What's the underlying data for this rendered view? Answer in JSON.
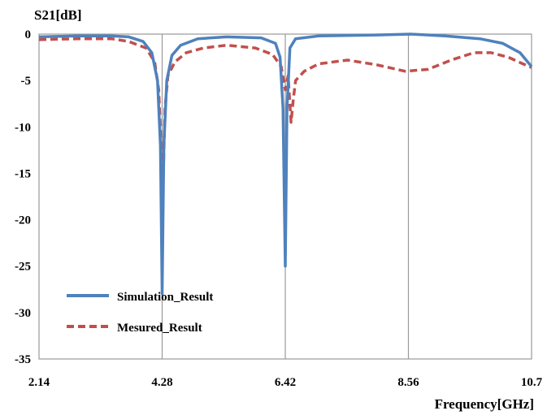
{
  "chart_data": {
    "type": "line",
    "ylabel": "S21[dB]",
    "xlabel": "Frequency[GHz]",
    "xlim": [
      2.14,
      10.7
    ],
    "ylim": [
      -35,
      0
    ],
    "x_ticks": [
      "2.14",
      "4.28",
      "6.42",
      "8.56",
      "10.7"
    ],
    "y_ticks": [
      "0",
      "-5",
      "-10",
      "-15",
      "-20",
      "-25",
      "-30",
      "-35"
    ],
    "grid": "vertical",
    "legend_position": "bottom-left",
    "series": [
      {
        "name": "Simulation_Result",
        "color": "#4f81bd",
        "style": "solid",
        "points": [
          [
            2.14,
            -0.3
          ],
          [
            2.8,
            -0.2
          ],
          [
            3.4,
            -0.2
          ],
          [
            3.7,
            -0.3
          ],
          [
            3.95,
            -0.8
          ],
          [
            4.1,
            -2.0
          ],
          [
            4.2,
            -5.0
          ],
          [
            4.25,
            -12.0
          ],
          [
            4.28,
            -28.0
          ],
          [
            4.31,
            -12.0
          ],
          [
            4.36,
            -5.0
          ],
          [
            4.45,
            -2.3
          ],
          [
            4.6,
            -1.2
          ],
          [
            4.9,
            -0.5
          ],
          [
            5.4,
            -0.3
          ],
          [
            6.0,
            -0.4
          ],
          [
            6.25,
            -1.0
          ],
          [
            6.33,
            -2.5
          ],
          [
            6.38,
            -8.0
          ],
          [
            6.42,
            -25.0
          ],
          [
            6.45,
            -8.0
          ],
          [
            6.5,
            -1.5
          ],
          [
            6.6,
            -0.5
          ],
          [
            7.0,
            -0.2
          ],
          [
            8.0,
            -0.1
          ],
          [
            8.6,
            0.0
          ],
          [
            9.2,
            -0.2
          ],
          [
            9.8,
            -0.5
          ],
          [
            10.2,
            -1.0
          ],
          [
            10.5,
            -2.0
          ],
          [
            10.7,
            -3.5
          ]
        ]
      },
      {
        "name": "Mesured_Result",
        "color": "#c0504d",
        "style": "dashed",
        "points": [
          [
            2.14,
            -0.6
          ],
          [
            2.8,
            -0.5
          ],
          [
            3.4,
            -0.5
          ],
          [
            3.7,
            -0.8
          ],
          [
            4.0,
            -1.5
          ],
          [
            4.15,
            -3.0
          ],
          [
            4.22,
            -6.0
          ],
          [
            4.26,
            -12.0
          ],
          [
            4.29,
            -17.5
          ],
          [
            4.33,
            -8.0
          ],
          [
            4.38,
            -4.5
          ],
          [
            4.5,
            -3.0
          ],
          [
            4.7,
            -2.0
          ],
          [
            5.0,
            -1.5
          ],
          [
            5.4,
            -1.2
          ],
          [
            5.9,
            -1.5
          ],
          [
            6.2,
            -2.2
          ],
          [
            6.35,
            -3.5
          ],
          [
            6.42,
            -6.0
          ],
          [
            6.47,
            -4.5
          ],
          [
            6.52,
            -9.5
          ],
          [
            6.56,
            -7.0
          ],
          [
            6.6,
            -5.0
          ],
          [
            6.75,
            -4.0
          ],
          [
            7.0,
            -3.2
          ],
          [
            7.5,
            -2.8
          ],
          [
            8.0,
            -3.3
          ],
          [
            8.5,
            -4.0
          ],
          [
            8.9,
            -3.8
          ],
          [
            9.3,
            -2.8
          ],
          [
            9.7,
            -2.0
          ],
          [
            10.0,
            -2.0
          ],
          [
            10.3,
            -2.5
          ],
          [
            10.55,
            -3.2
          ],
          [
            10.7,
            -3.6
          ]
        ]
      }
    ]
  }
}
